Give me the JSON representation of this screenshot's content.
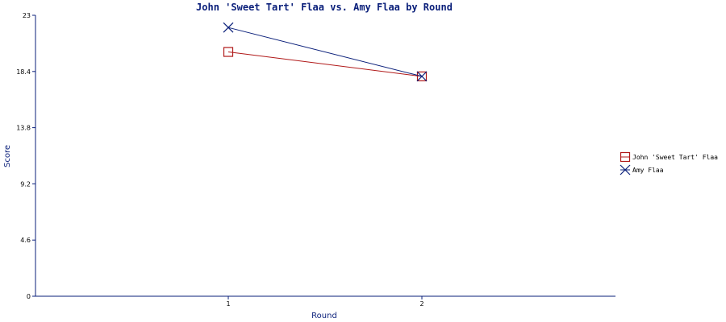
{
  "chart_data": {
    "type": "line",
    "title": "John 'Sweet Tart' Flaa vs. Amy Flaa by Round",
    "xlabel": "Round",
    "ylabel": "Score",
    "categories": [
      "1",
      "2"
    ],
    "ylim": [
      0,
      23
    ],
    "y_ticks": [
      "0",
      "4.6",
      "9.2",
      "13.8",
      "18.4",
      "23"
    ],
    "grid": false,
    "legend_position": "right",
    "series": [
      {
        "name": "John 'Sweet Tart' Flaa",
        "values": [
          20,
          18
        ],
        "color": "#b01818",
        "marker": "square"
      },
      {
        "name": "Amy Flaa",
        "values": [
          22,
          18
        ],
        "color": "#0a1f7a",
        "marker": "x"
      }
    ],
    "colors": {
      "axis": "#0a1f7a",
      "text": "#0a1f7a"
    }
  }
}
